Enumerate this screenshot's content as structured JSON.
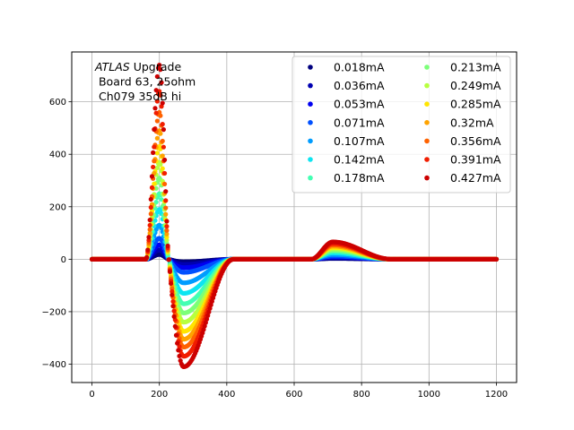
{
  "chart_data": {
    "type": "scatter",
    "title": "",
    "xlabel": "",
    "ylabel": "",
    "xlim": [
      -60,
      1260
    ],
    "ylim": [
      -470,
      790
    ],
    "xticks": [
      0,
      200,
      400,
      600,
      800,
      1000,
      1200
    ],
    "yticks": [
      -400,
      -200,
      0,
      200,
      400,
      600
    ],
    "grid": true,
    "annotation": {
      "line1_italic": "ATLAS",
      "line1_rest": " Upgrade",
      "line2": " Board 63, 25ohm",
      "line3": " Ch079 35dB hi"
    },
    "legend": {
      "placement": "top-right",
      "columns": 2
    },
    "pulse_shape": {
      "x_start": 0,
      "x_end": 1200,
      "rise_start": 160,
      "peak_x": 200,
      "zero_cross_x": 228,
      "trough_x": 272,
      "recover_x": 420,
      "bump_start": 650,
      "bump_peak_x": 715,
      "bump_end": 890
    },
    "series": [
      {
        "name": "0.018mA",
        "color": "#00007f",
        "peak": 18,
        "trough": -10,
        "bump": 3
      },
      {
        "name": "0.036mA",
        "color": "#0000b2",
        "peak": 36,
        "trough": -20,
        "bump": 6
      },
      {
        "name": "0.053mA",
        "color": "#0000f1",
        "peak": 55,
        "trough": -32,
        "bump": 9
      },
      {
        "name": "0.071mA",
        "color": "#0050ff",
        "peak": 80,
        "trough": -50,
        "bump": 12
      },
      {
        "name": "0.107mA",
        "color": "#009cff",
        "peak": 130,
        "trough": -90,
        "bump": 18
      },
      {
        "name": "0.142mA",
        "color": "#0de5f1",
        "peak": 190,
        "trough": -130,
        "bump": 24
      },
      {
        "name": "0.178mA",
        "color": "#43ffb3",
        "peak": 250,
        "trough": -170,
        "bump": 30
      },
      {
        "name": "0.213mA",
        "color": "#7cff79",
        "peak": 310,
        "trough": -205,
        "bump": 35
      },
      {
        "name": "0.249mA",
        "color": "#b7ff3f",
        "peak": 370,
        "trough": -240,
        "bump": 40
      },
      {
        "name": "0.285mA",
        "color": "#ffe500",
        "peak": 430,
        "trough": -275,
        "bump": 45
      },
      {
        "name": "0.32mA",
        "color": "#ffa300",
        "peak": 490,
        "trough": -305,
        "bump": 50
      },
      {
        "name": "0.356mA",
        "color": "#ff6200",
        "peak": 560,
        "trough": -335,
        "bump": 55
      },
      {
        "name": "0.391mA",
        "color": "#f11d00",
        "peak": 640,
        "trough": -370,
        "bump": 60
      },
      {
        "name": "0.427mA",
        "color": "#cc0000",
        "peak": 740,
        "trough": -410,
        "bump": 66
      }
    ]
  }
}
